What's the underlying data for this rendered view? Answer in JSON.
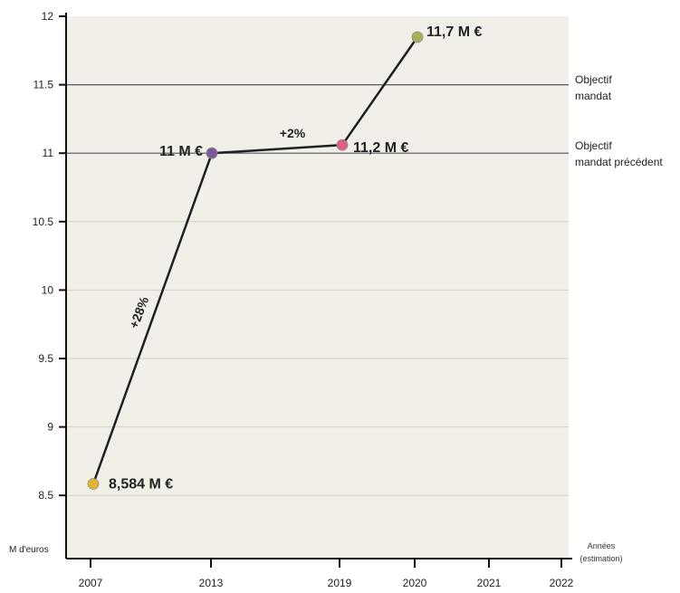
{
  "chart_data": {
    "type": "line",
    "ylabel": "M d'euros",
    "xlabel": "Années",
    "xlabel_note": "(estimation)",
    "x_ticks": [
      "2007",
      "2013",
      "2019",
      "2020",
      "2021",
      "2022"
    ],
    "y_ticks": [
      "8.5",
      "9",
      "9.5",
      "10",
      "10.5",
      "11",
      "11.5",
      "12"
    ],
    "ylim": [
      8.3,
      12
    ],
    "grid": true,
    "colors": {
      "background": "#f1efe7",
      "line": "#1f1f1f",
      "gridline": "#9a9a9a"
    },
    "series": [
      {
        "points": [
          {
            "x": "2007",
            "y": 8.584,
            "label": "8,584 M €",
            "color": "#e2b531"
          },
          {
            "x": "2013",
            "y": 11.0,
            "label": "11 M €",
            "color": "#7d5a97"
          },
          {
            "x": "2019",
            "y": 11.2,
            "label": "11,2 M €",
            "color": "#df5f80"
          },
          {
            "x": "2020",
            "y": 11.7,
            "label": "11,7 M €",
            "color": "#a9af58"
          }
        ]
      }
    ],
    "reference_lines": [
      {
        "y": 11.5,
        "label_lines": [
          "Objectif",
          "mandat"
        ]
      },
      {
        "y": 11.0,
        "label_lines": [
          "Objectif",
          "mandat précédent"
        ]
      }
    ],
    "annotations": [
      {
        "text": "+28%",
        "between": [
          "2007",
          "2013"
        ]
      },
      {
        "text": "+2%",
        "between": [
          "2013",
          "2019"
        ]
      }
    ]
  }
}
